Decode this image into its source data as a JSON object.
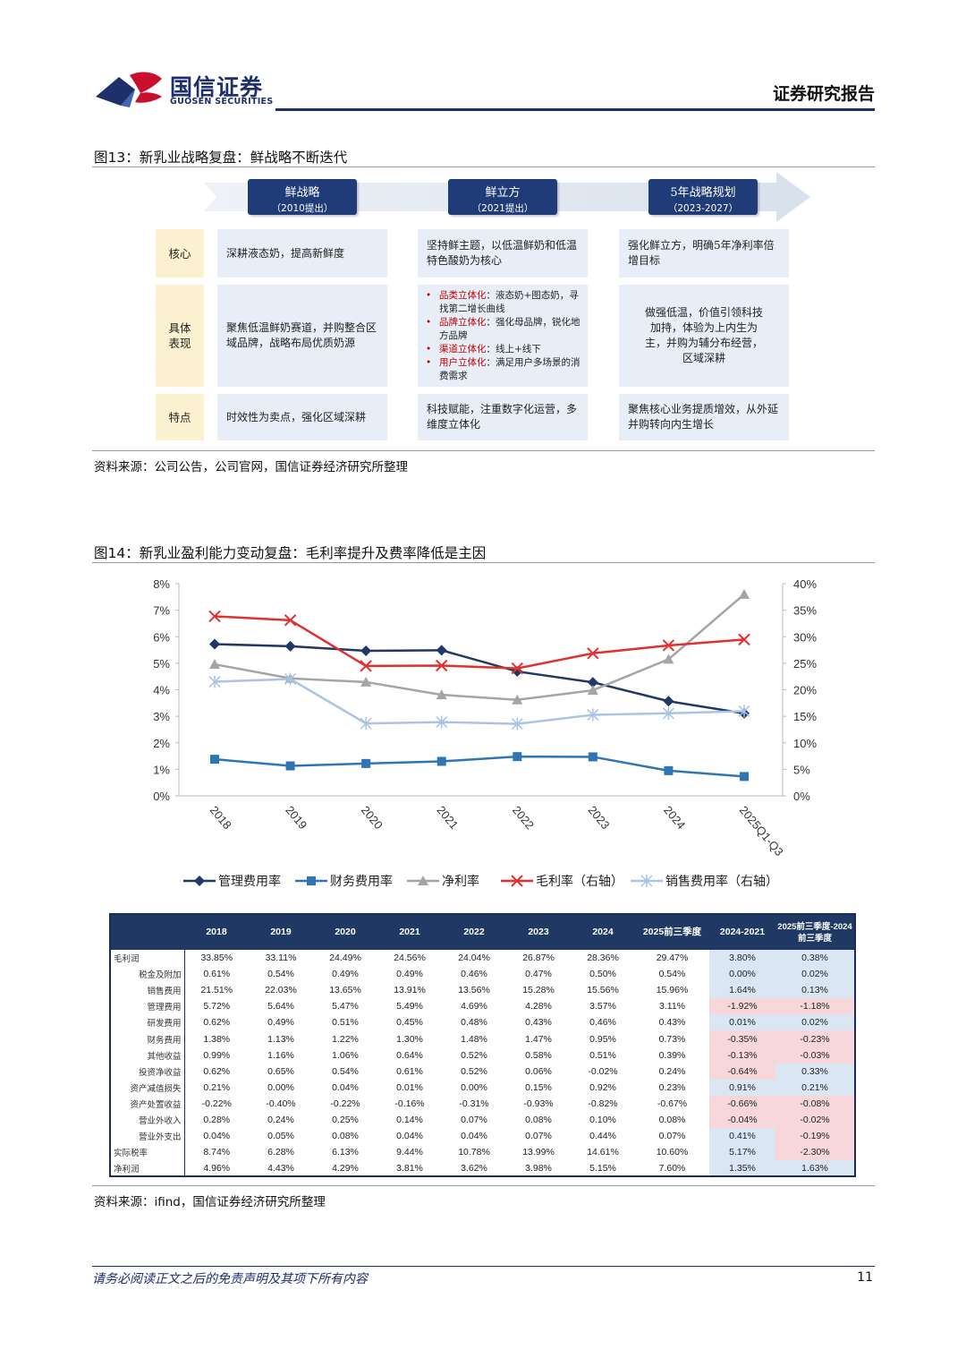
{
  "header": {
    "brand_cn": "国信证券",
    "brand_en": "GUOSEN SECURITIES",
    "report_type": "证券研究报告",
    "colors": {
      "navy": "#1e2f6b",
      "red": "#c8102e"
    }
  },
  "fig13": {
    "title": "图13：新乳业战略复盘：鲜战略不断迭代",
    "phases": [
      {
        "title": "鲜战略",
        "sub": "（2010提出）"
      },
      {
        "title": "鲜立方",
        "sub": "（2021提出）"
      },
      {
        "title": "5年战略规划",
        "sub": "（2023-2027）"
      }
    ],
    "row_labels": [
      "核心",
      "具体表现",
      "特点"
    ],
    "core": [
      "深耕液态奶，提高新鲜度",
      "坚持鲜主题，以低温鲜奶和低温特色酸奶为核心",
      "强化鲜立方，明确5年净利率倍增目标"
    ],
    "detail_col1": "聚焦低温鲜奶赛道，并购整合区域品牌，战略布局优质奶源",
    "detail_col2": [
      {
        "key": "品类立体化",
        "text": "：液态奶+图态奶，寻找第二增长曲线"
      },
      {
        "key": "品牌立体化",
        "text": "：强化母品牌，锐化地方品牌"
      },
      {
        "key": "渠道立体化",
        "text": "：线上+线下"
      },
      {
        "key": "用户立体化",
        "text": "：满足用户多场景的消费需求"
      }
    ],
    "detail_col3": "做强低温，价值引领科技加持，体验为上内生为主，并购为辅分布经营，区域深耕",
    "traits": [
      "时效性为卖点，强化区域深耕",
      "科技赋能，注重数字化运营，多维度立体化",
      "聚焦核心业务提质增效，从外延并购转向内生增长"
    ],
    "source": "资料来源：公司公告，公司官网，国信证券经济研究所整理"
  },
  "fig14": {
    "title": "图14：新乳业盈利能力变动复盘：毛利率提升及费率降低是主因",
    "source": "资料来源：ifind，国信证券经济研究所整理"
  },
  "chart_data": {
    "type": "line",
    "categories": [
      "2018",
      "2019",
      "2020",
      "2021",
      "2022",
      "2023",
      "2024",
      "2025Q1-Q3"
    ],
    "y_left": {
      "ticks": [
        "0%",
        "1%",
        "2%",
        "3%",
        "4%",
        "5%",
        "6%",
        "7%",
        "8%"
      ],
      "ylim": [
        0,
        8
      ]
    },
    "y_right": {
      "ticks": [
        "0%",
        "5%",
        "10%",
        "15%",
        "20%",
        "25%",
        "30%",
        "35%",
        "40%"
      ],
      "ylim": [
        0,
        40
      ]
    },
    "series": [
      {
        "name": "管理费用率",
        "axis": "left",
        "values": [
          5.72,
          5.64,
          5.47,
          5.49,
          4.69,
          4.28,
          3.57,
          3.11
        ],
        "color": "#1f3864",
        "marker": "diamond"
      },
      {
        "name": "财务费用率",
        "axis": "left",
        "values": [
          1.38,
          1.13,
          1.22,
          1.3,
          1.48,
          1.47,
          0.95,
          0.73
        ],
        "color": "#2e75b6",
        "marker": "square"
      },
      {
        "name": "净利率",
        "axis": "left",
        "values": [
          4.96,
          4.43,
          4.29,
          3.81,
          3.62,
          3.98,
          5.15,
          7.6
        ],
        "color": "#a5a5a5",
        "marker": "triangle"
      },
      {
        "name": "毛利率（右轴）",
        "axis": "right",
        "values": [
          33.85,
          33.11,
          24.49,
          24.56,
          24.04,
          26.87,
          28.36,
          29.47
        ],
        "color": "#e03030",
        "marker": "x"
      },
      {
        "name": "销售费用率（右轴）",
        "axis": "right",
        "values": [
          21.51,
          22.03,
          13.65,
          13.91,
          13.56,
          15.28,
          15.56,
          15.96
        ],
        "color": "#a9c4e4",
        "marker": "star"
      }
    ],
    "grid": false,
    "legend": "bottom"
  },
  "table": {
    "headers": [
      "2018",
      "2019",
      "2020",
      "2021",
      "2022",
      "2023",
      "2024",
      "2025前三季度",
      "2024-2021",
      "2025前三季度-2024前三季度"
    ],
    "rows": [
      {
        "label": "毛利润",
        "align": "left",
        "values": [
          "33.85%",
          "33.11%",
          "24.49%",
          "24.56%",
          "24.04%",
          "26.87%",
          "28.36%",
          "29.47%",
          "3.80%",
          "0.38%"
        ]
      },
      {
        "label": "税金及附加",
        "values": [
          "0.61%",
          "0.54%",
          "0.49%",
          "0.49%",
          "0.46%",
          "0.47%",
          "0.50%",
          "0.54%",
          "0.00%",
          "0.02%"
        ]
      },
      {
        "label": "销售费用",
        "values": [
          "21.51%",
          "22.03%",
          "13.65%",
          "13.91%",
          "13.56%",
          "15.28%",
          "15.56%",
          "15.96%",
          "1.64%",
          "0.13%"
        ]
      },
      {
        "label": "管理费用",
        "values": [
          "5.72%",
          "5.64%",
          "5.47%",
          "5.49%",
          "4.69%",
          "4.28%",
          "3.57%",
          "3.11%",
          "-1.92%",
          "-1.18%"
        ]
      },
      {
        "label": "研发费用",
        "values": [
          "0.62%",
          "0.49%",
          "0.51%",
          "0.45%",
          "0.48%",
          "0.43%",
          "0.46%",
          "0.43%",
          "0.01%",
          "0.02%"
        ]
      },
      {
        "label": "财务费用",
        "values": [
          "1.38%",
          "1.13%",
          "1.22%",
          "1.30%",
          "1.48%",
          "1.47%",
          "0.95%",
          "0.73%",
          "-0.35%",
          "-0.23%"
        ]
      },
      {
        "label": "其他收益",
        "values": [
          "0.99%",
          "1.16%",
          "1.06%",
          "0.64%",
          "0.52%",
          "0.58%",
          "0.51%",
          "0.39%",
          "-0.13%",
          "-0.03%"
        ]
      },
      {
        "label": "投资净收益",
        "values": [
          "0.62%",
          "0.65%",
          "0.54%",
          "0.61%",
          "0.52%",
          "0.06%",
          "-0.02%",
          "0.24%",
          "-0.64%",
          "0.33%"
        ]
      },
      {
        "label": "资产减值损失",
        "values": [
          "0.21%",
          "0.00%",
          "0.04%",
          "0.01%",
          "0.00%",
          "0.15%",
          "0.92%",
          "0.23%",
          "0.91%",
          "0.21%"
        ]
      },
      {
        "label": "资产处置收益",
        "values": [
          "-0.22%",
          "-0.40%",
          "-0.22%",
          "-0.16%",
          "-0.31%",
          "-0.93%",
          "-0.82%",
          "-0.67%",
          "-0.66%",
          "-0.08%"
        ]
      },
      {
        "label": "营业外收入",
        "values": [
          "0.28%",
          "0.24%",
          "0.25%",
          "0.14%",
          "0.07%",
          "0.08%",
          "0.10%",
          "0.08%",
          "-0.04%",
          "-0.02%"
        ]
      },
      {
        "label": "营业外支出",
        "values": [
          "0.04%",
          "0.05%",
          "0.08%",
          "0.04%",
          "0.04%",
          "0.07%",
          "0.44%",
          "0.07%",
          "0.41%",
          "-0.19%"
        ]
      },
      {
        "label": "实际税率",
        "align": "left",
        "values": [
          "8.74%",
          "6.28%",
          "6.13%",
          "9.44%",
          "10.78%",
          "13.99%",
          "14.61%",
          "10.60%",
          "5.17%",
          "-2.30%"
        ]
      },
      {
        "label": "净利润",
        "align": "left",
        "values": [
          "4.96%",
          "4.43%",
          "4.29%",
          "3.81%",
          "3.62%",
          "3.98%",
          "5.15%",
          "7.60%",
          "1.35%",
          "1.63%"
        ]
      }
    ]
  },
  "footer": {
    "disclaimer": "请务必阅读正文之后的免责声明及其项下所有内容",
    "page": "11"
  }
}
